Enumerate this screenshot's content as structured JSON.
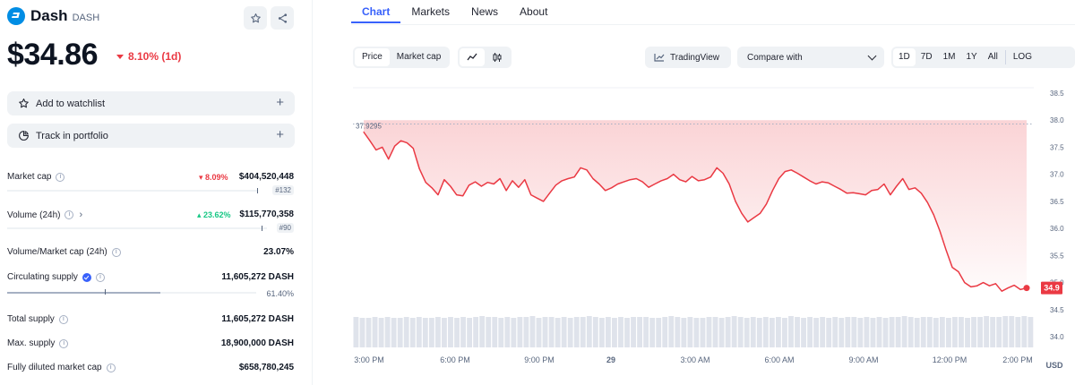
{
  "coin": {
    "name": "Dash",
    "symbol": "DASH",
    "price": "$34.86",
    "change": "8.10% (1d)"
  },
  "actions": {
    "watchlist": "Add to watchlist",
    "portfolio": "Track in portfolio"
  },
  "stats": {
    "market_cap": {
      "label": "Market cap",
      "pct": "8.09%",
      "value": "$404,520,448",
      "rank": "#132"
    },
    "volume": {
      "label": "Volume (24h)",
      "pct": "23.62%",
      "value": "$115,770,358",
      "rank": "#90"
    },
    "vol_mcap": {
      "label": "Volume/Market cap (24h)",
      "value": "23.07%"
    },
    "circ_supply": {
      "label": "Circulating supply",
      "value": "11,605,272 DASH",
      "pct": "61.40%",
      "fill": 0.614
    },
    "total_supply": {
      "label": "Total supply",
      "value": "11,605,272 DASH"
    },
    "max_supply": {
      "label": "Max. supply",
      "value": "18,900,000 DASH"
    },
    "fdmc": {
      "label": "Fully diluted market cap",
      "value": "$658,780,245"
    }
  },
  "tabs": [
    "Chart",
    "Markets",
    "News",
    "About"
  ],
  "toolbar": {
    "price": "Price",
    "market_cap": "Market cap",
    "tradingview": "TradingView",
    "compare": "Compare with",
    "ranges": [
      "1D",
      "7D",
      "1M",
      "1Y",
      "All"
    ],
    "log": "LOG"
  },
  "chart_data": {
    "type": "line",
    "x_ticks": [
      "3:00 PM",
      "6:00 PM",
      "9:00 PM",
      "29",
      "3:00 AM",
      "6:00 AM",
      "9:00 AM",
      "12:00 PM",
      "2:00 PM"
    ],
    "y_ticks": [
      38.5,
      38.0,
      37.5,
      37.0,
      36.5,
      36.0,
      35.5,
      35.0,
      34.5,
      34.0
    ],
    "ylim": [
      34.0,
      38.5
    ],
    "reference_value": "37.9295",
    "last_value": "34.9",
    "currency": "USD",
    "series": [
      {
        "values": [
          37.78,
          37.62,
          37.45,
          37.5,
          37.28,
          37.52,
          37.62,
          37.58,
          37.48,
          37.1,
          36.85,
          36.75,
          36.62,
          36.9,
          36.78,
          36.62,
          36.6,
          36.8,
          36.86,
          36.78,
          36.85,
          36.82,
          36.92,
          36.7,
          36.88,
          36.76,
          36.9,
          36.62,
          36.56,
          36.5,
          36.65,
          36.8,
          36.88,
          36.92,
          36.95,
          37.12,
          37.08,
          36.92,
          36.82,
          36.7,
          36.75,
          36.82,
          36.86,
          36.9,
          36.92,
          36.86,
          36.76,
          36.82,
          36.88,
          36.92,
          37.0,
          36.9,
          36.86,
          36.96,
          36.88,
          36.9,
          36.95,
          37.12,
          37.02,
          36.82,
          36.5,
          36.28,
          36.12,
          36.2,
          36.28,
          36.45,
          36.7,
          36.92,
          37.05,
          37.08,
          37.02,
          36.95,
          36.88,
          36.82,
          36.86,
          36.84,
          36.78,
          36.72,
          36.65,
          36.66,
          36.64,
          36.62,
          36.7,
          36.72,
          36.82,
          36.62,
          36.78,
          36.92,
          36.72,
          36.75,
          36.65,
          36.48,
          36.25,
          35.95,
          35.6,
          35.28,
          35.2,
          35.0,
          34.92,
          34.94,
          35.0,
          34.94,
          34.98,
          34.84,
          34.9,
          34.95,
          34.87,
          34.9
        ],
        "volumes": [
          34,
          33,
          33,
          34,
          33,
          34,
          33,
          33,
          34,
          33,
          34,
          33,
          33,
          34,
          33,
          34,
          33,
          34,
          33,
          34,
          35,
          34,
          34,
          33,
          34,
          33,
          34,
          34,
          35,
          33,
          34,
          34,
          33,
          34,
          33,
          34,
          34,
          35,
          34,
          33,
          34,
          33,
          34,
          33,
          34,
          34,
          34,
          33,
          33,
          34,
          35,
          34,
          33,
          34,
          33,
          33,
          34,
          34,
          33,
          34,
          35,
          34,
          33,
          34,
          33,
          34,
          33,
          34,
          33,
          35,
          34,
          33,
          34,
          33,
          34,
          33,
          34,
          33,
          34,
          34,
          33,
          34,
          33,
          34,
          33,
          34,
          34,
          35,
          34,
          33,
          34,
          34,
          33,
          34,
          33,
          34,
          34,
          33,
          34,
          34,
          35,
          34,
          34,
          35,
          35,
          34,
          35,
          34
        ]
      }
    ]
  }
}
